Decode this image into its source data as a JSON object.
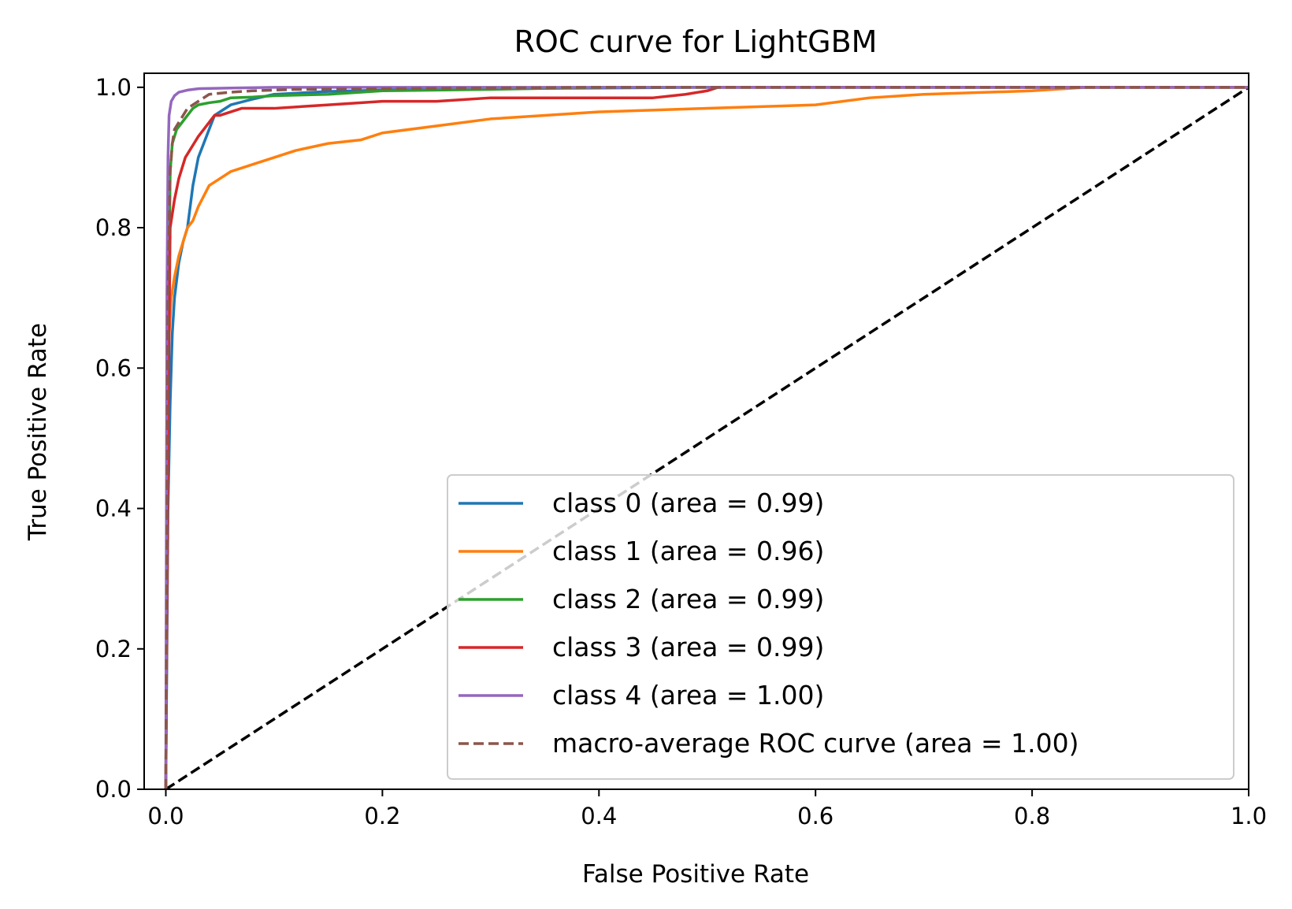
{
  "chart_data": {
    "type": "line",
    "title": "ROC curve for LightGBM",
    "xlabel": "False Positive Rate",
    "ylabel": "True Positive Rate",
    "xlim": [
      -0.02,
      1.0
    ],
    "ylim": [
      0.0,
      1.02
    ],
    "x_ticks": [
      "0.0",
      "0.2",
      "0.4",
      "0.6",
      "0.8",
      "1.0"
    ],
    "x_tick_values": [
      0.0,
      0.2,
      0.4,
      0.6,
      0.8,
      1.0
    ],
    "y_ticks": [
      "0.0",
      "0.2",
      "0.4",
      "0.6",
      "0.8",
      "1.0"
    ],
    "y_tick_values": [
      0.0,
      0.2,
      0.4,
      0.6,
      0.8,
      1.0
    ],
    "grid": false,
    "legend_position": "lower-right",
    "series": [
      {
        "name": "class 0 (area = 0.99)",
        "color": "#1f77b4",
        "style": "solid",
        "x": [
          0,
          0.002,
          0.004,
          0.006,
          0.008,
          0.012,
          0.016,
          0.02,
          0.025,
          0.03,
          0.035,
          0.04,
          0.045,
          0.05,
          0.06,
          0.08,
          0.1,
          0.15,
          0.2,
          0.3,
          0.5,
          1.0
        ],
        "y": [
          0,
          0.4,
          0.55,
          0.65,
          0.7,
          0.75,
          0.78,
          0.8,
          0.86,
          0.9,
          0.92,
          0.94,
          0.96,
          0.965,
          0.975,
          0.983,
          0.99,
          0.994,
          0.996,
          0.998,
          1.0,
          1.0
        ]
      },
      {
        "name": "class 1 (area = 0.96)",
        "color": "#ff7f0e",
        "style": "solid",
        "x": [
          0,
          0.002,
          0.005,
          0.008,
          0.012,
          0.016,
          0.02,
          0.025,
          0.03,
          0.04,
          0.05,
          0.06,
          0.07,
          0.08,
          0.1,
          0.12,
          0.15,
          0.18,
          0.2,
          0.25,
          0.3,
          0.35,
          0.4,
          0.5,
          0.6,
          0.65,
          0.7,
          0.8,
          0.85,
          0.9,
          1.0
        ],
        "y": [
          0,
          0.62,
          0.7,
          0.73,
          0.76,
          0.78,
          0.8,
          0.81,
          0.83,
          0.86,
          0.87,
          0.88,
          0.885,
          0.89,
          0.9,
          0.91,
          0.92,
          0.925,
          0.935,
          0.945,
          0.955,
          0.96,
          0.965,
          0.97,
          0.975,
          0.985,
          0.99,
          0.995,
          1.0,
          1.0,
          1.0
        ]
      },
      {
        "name": "class 2 (area = 0.99)",
        "color": "#2ca02c",
        "style": "solid",
        "x": [
          0,
          0.002,
          0.004,
          0.006,
          0.008,
          0.01,
          0.015,
          0.02,
          0.025,
          0.03,
          0.04,
          0.05,
          0.06,
          0.08,
          0.1,
          0.15,
          0.2,
          0.3,
          0.4,
          1.0
        ],
        "y": [
          0,
          0.6,
          0.88,
          0.92,
          0.93,
          0.94,
          0.95,
          0.96,
          0.97,
          0.975,
          0.978,
          0.98,
          0.985,
          0.986,
          0.988,
          0.99,
          0.995,
          0.997,
          1.0,
          1.0
        ]
      },
      {
        "name": "class 3 (area = 0.99)",
        "color": "#d62728",
        "style": "solid",
        "x": [
          0,
          0.002,
          0.004,
          0.008,
          0.012,
          0.018,
          0.022,
          0.026,
          0.03,
          0.035,
          0.04,
          0.045,
          0.05,
          0.07,
          0.1,
          0.15,
          0.2,
          0.25,
          0.3,
          0.4,
          0.45,
          0.48,
          0.5,
          0.51,
          1.0
        ],
        "y": [
          0,
          0.5,
          0.8,
          0.84,
          0.87,
          0.9,
          0.91,
          0.92,
          0.93,
          0.94,
          0.95,
          0.96,
          0.96,
          0.97,
          0.97,
          0.975,
          0.98,
          0.98,
          0.985,
          0.985,
          0.985,
          0.99,
          0.995,
          1.0,
          1.0
        ]
      },
      {
        "name": "class 4 (area = 1.00)",
        "color": "#9467bd",
        "style": "solid",
        "x": [
          0,
          0.001,
          0.002,
          0.003,
          0.005,
          0.008,
          0.012,
          0.02,
          0.03,
          0.06,
          0.1,
          1.0
        ],
        "y": [
          0,
          0.7,
          0.9,
          0.96,
          0.98,
          0.988,
          0.993,
          0.996,
          0.998,
          0.999,
          1.0,
          1.0
        ]
      },
      {
        "name": "macro-average ROC curve (area = 1.00)",
        "color": "#8c564b",
        "style": "dashed",
        "x": [
          0,
          0.002,
          0.004,
          0.006,
          0.008,
          0.012,
          0.016,
          0.02,
          0.03,
          0.04,
          0.06,
          0.08,
          0.12,
          0.2,
          0.4,
          1.0
        ],
        "y": [
          0,
          0.7,
          0.88,
          0.92,
          0.94,
          0.95,
          0.96,
          0.97,
          0.98,
          0.99,
          0.993,
          0.995,
          0.997,
          0.998,
          1.0,
          1.0
        ]
      }
    ],
    "reference_line": {
      "x": [
        0,
        1
      ],
      "y": [
        0,
        1
      ],
      "color": "#000000",
      "style": "dashed"
    }
  }
}
